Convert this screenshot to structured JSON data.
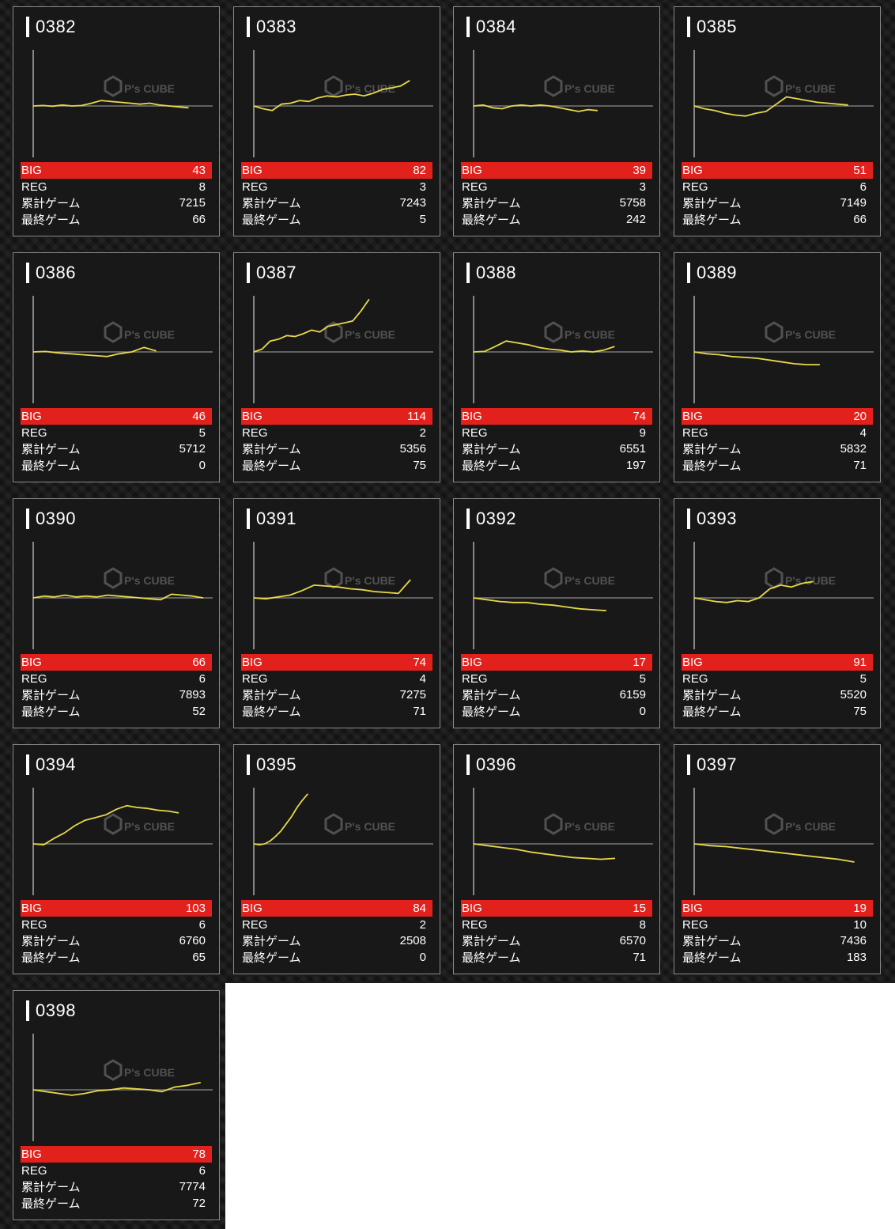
{
  "labels": {
    "big": "BIG",
    "reg": "REG",
    "total_games": "累計ゲーム",
    "last_games": "最終ゲーム",
    "watermark": "P's CUBE"
  },
  "colors": {
    "big_bar": "#e3211c",
    "line": "#e6d84a",
    "baseline": "#8a8a8a"
  },
  "machines": [
    {
      "id": "0382",
      "big": "43",
      "reg": "8",
      "total": "7215",
      "last": "66",
      "graph": [
        0,
        0.5,
        -0.3,
        1,
        0,
        0.5,
        3,
        6,
        5,
        4,
        3,
        2,
        3,
        1,
        0,
        -1,
        -2
      ]
    },
    {
      "id": "0383",
      "big": "82",
      "reg": "3",
      "total": "7243",
      "last": "5",
      "graph": [
        0,
        -3,
        -5,
        2,
        3,
        6,
        5,
        9,
        11,
        10,
        12,
        13,
        11,
        14,
        18,
        20,
        22,
        28
      ]
    },
    {
      "id": "0384",
      "big": "39",
      "reg": "3",
      "total": "5758",
      "last": "242",
      "graph": [
        0,
        1,
        -2,
        -3,
        0,
        1,
        0,
        1,
        0,
        -2,
        -4,
        -6,
        -4,
        -5
      ]
    },
    {
      "id": "0385",
      "big": "51",
      "reg": "6",
      "total": "7149",
      "last": "66",
      "graph": [
        0,
        -3,
        -5,
        -8,
        -10,
        -11,
        -8,
        -6,
        2,
        10,
        8,
        6,
        4,
        3,
        2,
        1
      ]
    },
    {
      "id": "0386",
      "big": "46",
      "reg": "5",
      "total": "5712",
      "last": "0",
      "graph": [
        0,
        0.5,
        -1,
        -2,
        -3,
        -4,
        -5,
        -2,
        0,
        5,
        1
      ]
    },
    {
      "id": "0387",
      "big": "114",
      "reg": "2",
      "total": "5356",
      "last": "75",
      "graph": [
        0,
        3,
        12,
        14,
        18,
        17,
        20,
        24,
        22,
        28,
        30,
        32,
        34,
        45,
        58
      ]
    },
    {
      "id": "0388",
      "big": "74",
      "reg": "9",
      "total": "6551",
      "last": "197",
      "graph": [
        0,
        0.5,
        6,
        12,
        10,
        8,
        5,
        3,
        2,
        0,
        1,
        0,
        2,
        6
      ]
    },
    {
      "id": "0389",
      "big": "20",
      "reg": "4",
      "total": "5832",
      "last": "71",
      "graph": [
        0,
        -2,
        -3,
        -5,
        -6,
        -7,
        -9,
        -11,
        -13,
        -14,
        -14
      ]
    },
    {
      "id": "0390",
      "big": "66",
      "reg": "6",
      "total": "7893",
      "last": "52",
      "graph": [
        0,
        2,
        1,
        3,
        1,
        2,
        1,
        3,
        2,
        1,
        0,
        -1,
        -2,
        4,
        3,
        2,
        0
      ]
    },
    {
      "id": "0391",
      "big": "74",
      "reg": "4",
      "total": "7275",
      "last": "71",
      "graph": [
        0,
        -1,
        1,
        3,
        8,
        14,
        13,
        12,
        10,
        9,
        7,
        6,
        5,
        20
      ]
    },
    {
      "id": "0392",
      "big": "17",
      "reg": "5",
      "total": "6159",
      "last": "0",
      "graph": [
        0,
        -2,
        -4,
        -5,
        -5,
        -7,
        -8,
        -10,
        -12,
        -13,
        -14
      ]
    },
    {
      "id": "0393",
      "big": "91",
      "reg": "5",
      "total": "5520",
      "last": "75",
      "graph": [
        0,
        -2,
        -4,
        -5,
        -3,
        -4,
        0,
        10,
        14,
        12,
        16,
        18
      ]
    },
    {
      "id": "0394",
      "big": "103",
      "reg": "6",
      "total": "6760",
      "last": "65",
      "graph": [
        0,
        -1,
        6,
        12,
        20,
        26,
        29,
        32,
        38,
        42,
        40,
        39,
        37,
        36,
        34
      ]
    },
    {
      "id": "0395",
      "big": "84",
      "reg": "2",
      "total": "2508",
      "last": "0",
      "graph": [
        0,
        -1,
        0,
        3,
        8,
        14,
        22,
        30,
        40,
        48,
        55
      ]
    },
    {
      "id": "0396",
      "big": "15",
      "reg": "8",
      "total": "6570",
      "last": "71",
      "graph": [
        0,
        -2,
        -4,
        -6,
        -9,
        -11,
        -13,
        -15,
        -16,
        -17,
        -16
      ]
    },
    {
      "id": "0397",
      "big": "19",
      "reg": "10",
      "total": "7436",
      "last": "183",
      "graph": [
        0,
        -2,
        -3,
        -5,
        -7,
        -9,
        -11,
        -13,
        -15,
        -17,
        -20
      ]
    },
    {
      "id": "0398",
      "big": "78",
      "reg": "6",
      "total": "7774",
      "last": "72",
      "graph": [
        0,
        -2,
        -4,
        -6,
        -4,
        -1,
        0,
        2,
        1,
        0,
        -2,
        3,
        5,
        8
      ]
    }
  ]
}
